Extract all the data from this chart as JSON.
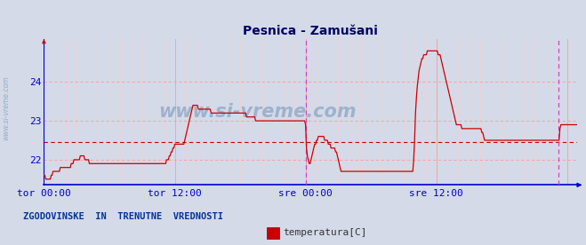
{
  "title": "Pesnica - Zamušani",
  "background_color": "#d4dae8",
  "plot_bg_color": "#d4dae8",
  "line_color": "#cc0000",
  "grid_color_major": "#ff9999",
  "grid_color_minor": "#ffcccc",
  "axis_color": "#0000cc",
  "tick_label_color": "#0000cc",
  "title_color": "#000066",
  "watermark_color": "#7799bb",
  "avg_line_color": "#cc0000",
  "vline_color": "#cc44cc",
  "ylim": [
    21.35,
    25.1
  ],
  "yticks": [
    22,
    23,
    24
  ],
  "avg_value": 22.45,
  "x_tick_positions": [
    0,
    144,
    288,
    432
  ],
  "x_tick_labels": [
    "tor 00:00",
    "tor 12:00",
    "sre 00:00",
    "sre 12:00"
  ],
  "vline_positions": [
    288,
    566
  ],
  "legend_label": "temperatura[C]",
  "legend_text": "ZGODOVINSKE  IN  TRENUTNE  VREDNOSTI",
  "watermark": "www.si-vreme.com",
  "temp_data": [
    21.6,
    21.6,
    21.5,
    21.5,
    21.5,
    21.5,
    21.5,
    21.5,
    21.6,
    21.6,
    21.7,
    21.7,
    21.7,
    21.7,
    21.7,
    21.7,
    21.7,
    21.7,
    21.8,
    21.8,
    21.8,
    21.8,
    21.8,
    21.8,
    21.8,
    21.8,
    21.8,
    21.8,
    21.8,
    21.8,
    21.9,
    21.9,
    21.9,
    22.0,
    22.0,
    22.0,
    22.0,
    22.0,
    22.0,
    22.0,
    22.1,
    22.1,
    22.1,
    22.1,
    22.1,
    22.0,
    22.0,
    22.0,
    22.0,
    22.0,
    21.9,
    21.9,
    21.9,
    21.9,
    21.9,
    21.9,
    21.9,
    21.9,
    21.9,
    21.9,
    21.9,
    21.9,
    21.9,
    21.9,
    21.9,
    21.9,
    21.9,
    21.9,
    21.9,
    21.9,
    21.9,
    21.9,
    21.9,
    21.9,
    21.9,
    21.9,
    21.9,
    21.9,
    21.9,
    21.9,
    21.9,
    21.9,
    21.9,
    21.9,
    21.9,
    21.9,
    21.9,
    21.9,
    21.9,
    21.9,
    21.9,
    21.9,
    21.9,
    21.9,
    21.9,
    21.9,
    21.9,
    21.9,
    21.9,
    21.9,
    21.9,
    21.9,
    21.9,
    21.9,
    21.9,
    21.9,
    21.9,
    21.9,
    21.9,
    21.9,
    21.9,
    21.9,
    21.9,
    21.9,
    21.9,
    21.9,
    21.9,
    21.9,
    21.9,
    21.9,
    21.9,
    21.9,
    21.9,
    21.9,
    21.9,
    21.9,
    21.9,
    21.9,
    21.9,
    21.9,
    21.9,
    21.9,
    21.9,
    21.9,
    21.9,
    22.0,
    22.0,
    22.0,
    22.1,
    22.1,
    22.2,
    22.2,
    22.3,
    22.3,
    22.4,
    22.4,
    22.4,
    22.4,
    22.4,
    22.4,
    22.4,
    22.4,
    22.4,
    22.4,
    22.4,
    22.5,
    22.6,
    22.7,
    22.8,
    22.9,
    23.0,
    23.1,
    23.2,
    23.3,
    23.4,
    23.4,
    23.4,
    23.4,
    23.4,
    23.4,
    23.3,
    23.3,
    23.3,
    23.3,
    23.3,
    23.3,
    23.3,
    23.3,
    23.3,
    23.3,
    23.3,
    23.3,
    23.3,
    23.3,
    23.2,
    23.2,
    23.2,
    23.2,
    23.2,
    23.2,
    23.2,
    23.2,
    23.2,
    23.2,
    23.2,
    23.2,
    23.2,
    23.2,
    23.2,
    23.2,
    23.2,
    23.2,
    23.2,
    23.2,
    23.2,
    23.2,
    23.2,
    23.2,
    23.2,
    23.2,
    23.2,
    23.2,
    23.2,
    23.2,
    23.2,
    23.2,
    23.2,
    23.2,
    23.2,
    23.2,
    23.2,
    23.2,
    23.2,
    23.1,
    23.1,
    23.1,
    23.1,
    23.1,
    23.1,
    23.1,
    23.1,
    23.1,
    23.1,
    23.0,
    23.0,
    23.0,
    23.0,
    23.0,
    23.0,
    23.0,
    23.0,
    23.0,
    23.0,
    23.0,
    23.0,
    23.0,
    23.0,
    23.0,
    23.0,
    23.0,
    23.0,
    23.0,
    23.0,
    23.0,
    23.0,
    23.0,
    23.0,
    23.0,
    23.0,
    23.0,
    23.0,
    23.0,
    23.0,
    23.0,
    23.0,
    23.0,
    23.0,
    23.0,
    23.0,
    23.0,
    23.0,
    23.0,
    23.0,
    23.0,
    23.0,
    23.0,
    23.0,
    23.0,
    23.0,
    23.0,
    23.0,
    23.0,
    23.0,
    23.0,
    23.0,
    23.0,
    23.0,
    23.0,
    22.9,
    22.3,
    22.1,
    22.0,
    21.9,
    21.9,
    22.0,
    22.1,
    22.2,
    22.3,
    22.4,
    22.4,
    22.5,
    22.5,
    22.6,
    22.6,
    22.6,
    22.6,
    22.6,
    22.6,
    22.6,
    22.5,
    22.5,
    22.5,
    22.5,
    22.4,
    22.4,
    22.4,
    22.3,
    22.3,
    22.3,
    22.3,
    22.3,
    22.2,
    22.2,
    22.1,
    22.0,
    21.9,
    21.8,
    21.7,
    21.7,
    21.7,
    21.7,
    21.7,
    21.7,
    21.7,
    21.7,
    21.7,
    21.7,
    21.7,
    21.7,
    21.7,
    21.7,
    21.7,
    21.7,
    21.7,
    21.7,
    21.7,
    21.7,
    21.7,
    21.7,
    21.7,
    21.7,
    21.7,
    21.7,
    21.7,
    21.7,
    21.7,
    21.7,
    21.7,
    21.7,
    21.7,
    21.7,
    21.7,
    21.7,
    21.7,
    21.7,
    21.7,
    21.7,
    21.7,
    21.7,
    21.7,
    21.7,
    21.7,
    21.7,
    21.7,
    21.7,
    21.7,
    21.7,
    21.7,
    21.7,
    21.7,
    21.7,
    21.7,
    21.7,
    21.7,
    21.7,
    21.7,
    21.7,
    21.7,
    21.7,
    21.7,
    21.7,
    21.7,
    21.7,
    21.7,
    21.7,
    21.7,
    21.7,
    21.7,
    21.7,
    21.7,
    21.7,
    21.7,
    21.7,
    21.7,
    21.7,
    21.7,
    21.7,
    22.0,
    22.5,
    23.2,
    23.6,
    23.9,
    24.1,
    24.3,
    24.4,
    24.5,
    24.6,
    24.6,
    24.7,
    24.7,
    24.7,
    24.7,
    24.8,
    24.8,
    24.8,
    24.8,
    24.8,
    24.8,
    24.8,
    24.8,
    24.8,
    24.8,
    24.8,
    24.8,
    24.7,
    24.7,
    24.7,
    24.6,
    24.5,
    24.4,
    24.3,
    24.2,
    24.1,
    24.0,
    23.9,
    23.8,
    23.7,
    23.6,
    23.5,
    23.4,
    23.3,
    23.2,
    23.1,
    23.0,
    22.9,
    22.9,
    22.9,
    22.9,
    22.9,
    22.9,
    22.8,
    22.8,
    22.8,
    22.8,
    22.8,
    22.8,
    22.8,
    22.8,
    22.8,
    22.8,
    22.8,
    22.8,
    22.8,
    22.8,
    22.8,
    22.8,
    22.8,
    22.8,
    22.8,
    22.8,
    22.8,
    22.8,
    22.7,
    22.7,
    22.6,
    22.5,
    22.5,
    22.5,
    22.5,
    22.5,
    22.5,
    22.5,
    22.5,
    22.5,
    22.5,
    22.5,
    22.5,
    22.5,
    22.5,
    22.5,
    22.5,
    22.5,
    22.5,
    22.5,
    22.5,
    22.5,
    22.5,
    22.5,
    22.5,
    22.5,
    22.5,
    22.5,
    22.5,
    22.5,
    22.5,
    22.5,
    22.5,
    22.5,
    22.5,
    22.5,
    22.5,
    22.5,
    22.5,
    22.5,
    22.5,
    22.5,
    22.5,
    22.5,
    22.5,
    22.5,
    22.5,
    22.5,
    22.5,
    22.5,
    22.5,
    22.5,
    22.5,
    22.5,
    22.5,
    22.5,
    22.5,
    22.5,
    22.5,
    22.5,
    22.5,
    22.5,
    22.5,
    22.5,
    22.5,
    22.5,
    22.5,
    22.5,
    22.5,
    22.5,
    22.5,
    22.5,
    22.5,
    22.5,
    22.5,
    22.5,
    22.5,
    22.5,
    22.5,
    22.5,
    22.5,
    22.5,
    22.5,
    22.5,
    22.8,
    22.9,
    22.9,
    22.9,
    22.9,
    22.9,
    22.9,
    22.9,
    22.9,
    22.9,
    22.9,
    22.9,
    22.9,
    22.9,
    22.9,
    22.9,
    22.9,
    22.9,
    22.9,
    22.9
  ]
}
